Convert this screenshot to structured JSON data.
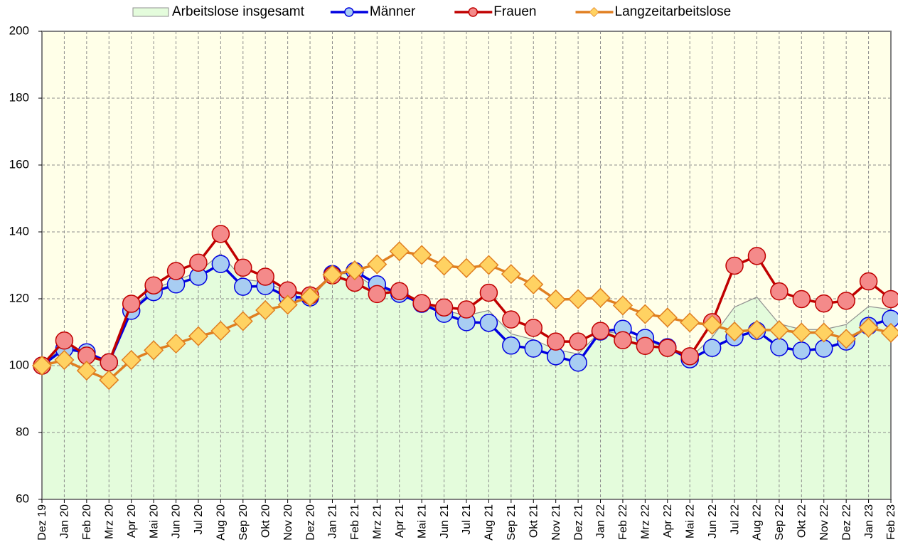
{
  "chart_data": {
    "type": "line",
    "categories": [
      "Dez 19",
      "Jan 20",
      "Feb 20",
      "Mrz 20",
      "Apr 20",
      "Mai 20",
      "Jun 20",
      "Jul 20",
      "Aug 20",
      "Sep 20",
      "Okt 20",
      "Nov 20",
      "Dez 20",
      "Jan 21",
      "Feb 21",
      "Mrz 21",
      "Apr 21",
      "Mai 21",
      "Jun 21",
      "Jul 21",
      "Aug 21",
      "Sep 21",
      "Okt 21",
      "Nov 21",
      "Dez 21",
      "Jan 22",
      "Feb 22",
      "Mrz 22",
      "Apr 22",
      "Mai 22",
      "Jun 22",
      "Jul 22",
      "Aug 22",
      "Sep 22",
      "Okt 22",
      "Nov 22",
      "Dez 22",
      "Jan 23",
      "Feb 23"
    ],
    "series": [
      {
        "name": "Arbeitslose insgesamt",
        "kind": "area",
        "color": "#e4fcdc",
        "edge": "#909090",
        "values": [
          100,
          106,
          104,
          101,
          117,
          123,
          125.5,
          128,
          133.5,
          125.8,
          125,
          122,
          121,
          127.5,
          127.5,
          123,
          122,
          118.6,
          116.5,
          115,
          116.5,
          109.5,
          107.8,
          104.8,
          103.5,
          110.3,
          109.5,
          107.3,
          105.5,
          102.3,
          108.5,
          117.5,
          120.5,
          112.5,
          110.8,
          110.8,
          112.3,
          117.7,
          116.8
        ]
      },
      {
        "name": "Männer",
        "kind": "line",
        "marker": "circle",
        "color": "#0000e0",
        "fill": "#a8cdf2",
        "values": [
          100,
          105,
          104,
          101,
          116.4,
          122,
          124.3,
          126.6,
          130.4,
          123.6,
          123.8,
          120.5,
          120.4,
          127.4,
          128.3,
          124.3,
          121.5,
          118.5,
          115.5,
          113,
          112.8,
          106,
          105.1,
          102.8,
          100.9,
          110.2,
          111,
          108.3,
          105.5,
          101.9,
          105.3,
          108.5,
          110.4,
          105.5,
          104.5,
          105.1,
          107.2,
          111.9,
          114
        ]
      },
      {
        "name": "Frauen",
        "kind": "line",
        "marker": "circle",
        "color": "#c00000",
        "fill": "#f48a8a",
        "values": [
          100,
          107.5,
          103,
          101,
          118.5,
          124,
          128.3,
          130.8,
          139.4,
          129.3,
          126.6,
          122.5,
          121,
          127,
          124.8,
          121.4,
          122.3,
          118.7,
          117.4,
          116.8,
          121.8,
          113.8,
          111.3,
          107.2,
          107.2,
          110.4,
          107.6,
          105.9,
          105.3,
          102.8,
          113,
          129.9,
          132.8,
          122.2,
          119.9,
          118.6,
          119.4,
          125.2,
          119.9
        ]
      },
      {
        "name": "Langzeitarbeitslose",
        "kind": "line",
        "marker": "diamond",
        "color": "#e07f20",
        "fill": "#ffd262",
        "values": [
          100,
          101.7,
          98.5,
          95.7,
          101.7,
          104.6,
          106.6,
          108.8,
          110.4,
          113.3,
          116.6,
          118.2,
          120.6,
          127.2,
          128.5,
          130.3,
          134.2,
          133.1,
          129.9,
          129.2,
          130.1,
          127.4,
          124.3,
          119.8,
          119.9,
          120.3,
          118,
          115.4,
          114.4,
          112.9,
          112.2,
          110.2,
          110.7,
          110.6,
          109.9,
          109.9,
          108,
          111.4,
          109.8
        ]
      }
    ],
    "ylim": [
      60,
      200
    ],
    "yticks": [
      60,
      80,
      100,
      120,
      140,
      160,
      180,
      200
    ],
    "grid": true,
    "legend": "top",
    "plot_background": "#ffffe8"
  }
}
